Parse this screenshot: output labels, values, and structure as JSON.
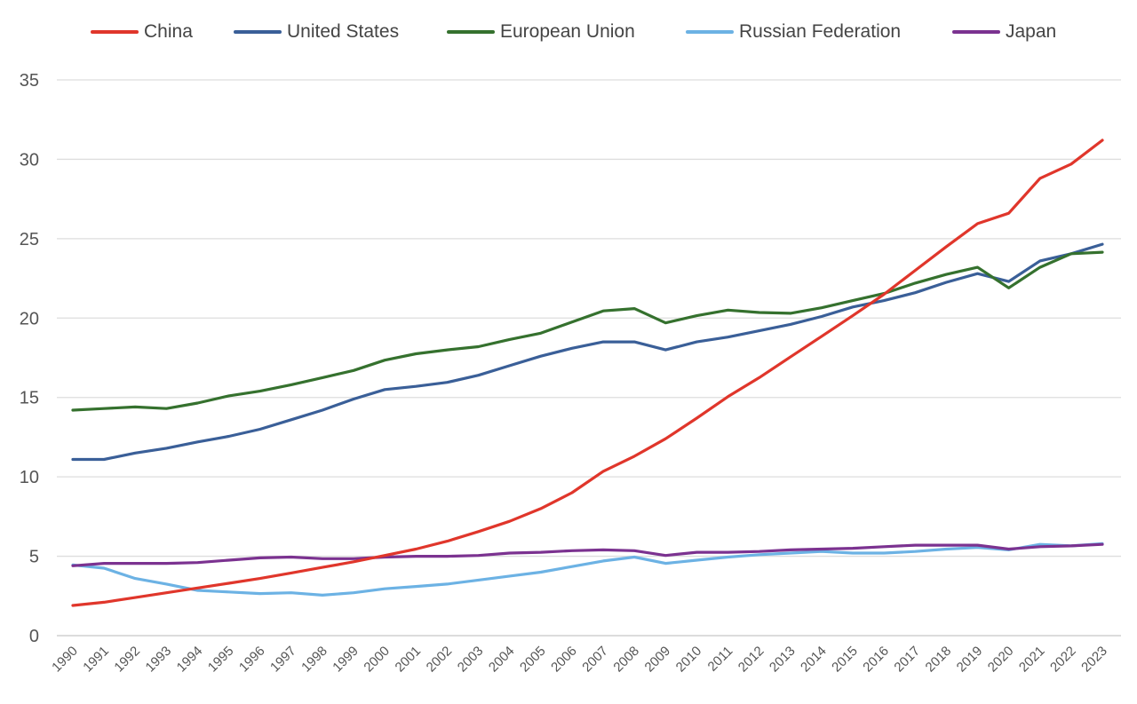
{
  "chart_data": {
    "type": "line",
    "title": "",
    "xlabel": "",
    "ylabel": "",
    "ylim": [
      0,
      35
    ],
    "yticks": [
      0,
      5,
      10,
      15,
      20,
      25,
      30,
      35
    ],
    "grid": "horizontal",
    "legend_position": "top",
    "categories": [
      "1990",
      "1991",
      "1992",
      "1993",
      "1994",
      "1995",
      "1996",
      "1997",
      "1998",
      "1999",
      "2000",
      "2001",
      "2002",
      "2003",
      "2004",
      "2005",
      "2006",
      "2007",
      "2008",
      "2009",
      "2010",
      "2011",
      "2012",
      "2013",
      "2014",
      "2015",
      "2016",
      "2017",
      "2018",
      "2019",
      "2020",
      "2021",
      "2022",
      "2023"
    ],
    "series": [
      {
        "name": "China",
        "color": "#e0362b",
        "values": [
          1.9,
          2.1,
          2.4,
          2.7,
          3.0,
          3.3,
          3.6,
          3.95,
          4.3,
          4.65,
          5.05,
          5.45,
          5.95,
          6.55,
          7.2,
          8.0,
          9.0,
          10.35,
          11.3,
          12.4,
          13.7,
          15.05,
          16.25,
          17.55,
          18.85,
          20.15,
          21.5,
          23.0,
          24.5,
          25.95,
          26.6,
          28.8,
          29.7,
          31.2
        ]
      },
      {
        "name": "United States",
        "color": "#3a5f98",
        "values": [
          11.1,
          11.1,
          11.5,
          11.8,
          12.2,
          12.55,
          13.0,
          13.6,
          14.2,
          14.9,
          15.5,
          15.7,
          15.95,
          16.4,
          17.0,
          17.6,
          18.1,
          18.5,
          18.5,
          18.0,
          18.5,
          18.8,
          19.2,
          19.6,
          20.1,
          20.7,
          21.1,
          21.6,
          22.25,
          22.8,
          22.3,
          23.6,
          24.05,
          24.65
        ]
      },
      {
        "name": "European Union",
        "color": "#35712e",
        "values": [
          14.2,
          14.3,
          14.4,
          14.3,
          14.65,
          15.1,
          15.4,
          15.8,
          16.25,
          16.7,
          17.35,
          17.75,
          18.0,
          18.2,
          18.65,
          19.05,
          19.75,
          20.45,
          20.6,
          19.7,
          20.15,
          20.5,
          20.35,
          20.3,
          20.65,
          21.1,
          21.55,
          22.2,
          22.75,
          23.2,
          21.9,
          23.2,
          24.05,
          24.15
        ]
      },
      {
        "name": "Russian Federation",
        "color": "#6cb2e4",
        "values": [
          4.45,
          4.25,
          3.6,
          3.25,
          2.85,
          2.75,
          2.65,
          2.7,
          2.55,
          2.7,
          2.95,
          3.1,
          3.25,
          3.5,
          3.75,
          4.0,
          4.35,
          4.7,
          4.95,
          4.55,
          4.75,
          4.95,
          5.1,
          5.2,
          5.3,
          5.2,
          5.2,
          5.3,
          5.45,
          5.55,
          5.4,
          5.75,
          5.65,
          5.8
        ]
      },
      {
        "name": "Japan",
        "color": "#7b3290",
        "values": [
          4.4,
          4.55,
          4.55,
          4.55,
          4.6,
          4.75,
          4.9,
          4.95,
          4.85,
          4.85,
          4.95,
          5.0,
          5.0,
          5.05,
          5.2,
          5.25,
          5.35,
          5.4,
          5.35,
          5.05,
          5.25,
          5.25,
          5.3,
          5.4,
          5.45,
          5.5,
          5.6,
          5.7,
          5.7,
          5.7,
          5.45,
          5.6,
          5.65,
          5.75
        ]
      }
    ]
  }
}
